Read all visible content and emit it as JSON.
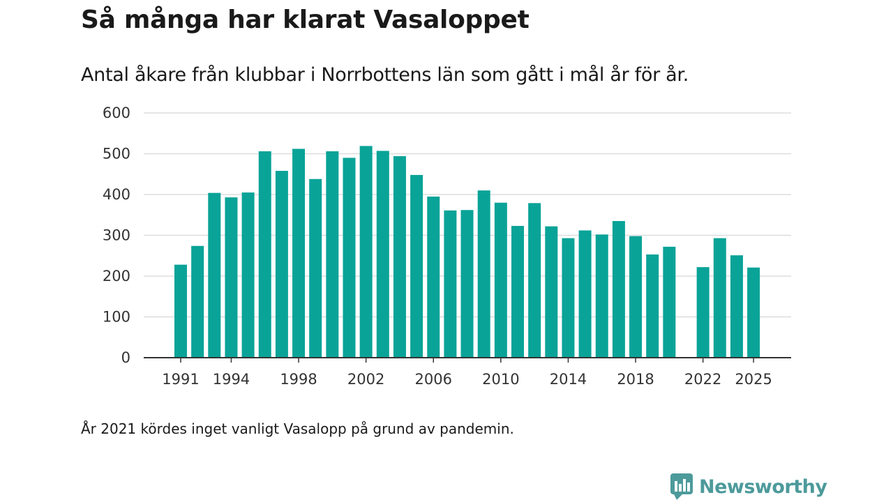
{
  "title": "Så många har klarat Vasaloppet",
  "subtitle": "Antal åkare från klubbar i Norrbottens län som gått i mål år för år.",
  "note": "År 2021 kördes inget vanligt Vasalopp på grund av pandemin.",
  "brand": {
    "name": "Newsworthy",
    "icon": "newsworthy-logo-icon"
  },
  "colors": {
    "bar": "#0aa398",
    "grid": "#dddddd",
    "axis": "#333333",
    "brand": "#4d9a9b"
  },
  "chart_data": {
    "type": "bar",
    "title": "Så många har klarat Vasaloppet",
    "xlabel": "",
    "ylabel": "",
    "ylim": [
      0,
      600
    ],
    "yticks": [
      0,
      100,
      200,
      300,
      400,
      500,
      600
    ],
    "xticks": [
      1991,
      1994,
      1998,
      2002,
      2006,
      2010,
      2014,
      2018,
      2022,
      2025
    ],
    "grid": true,
    "categories": [
      1991,
      1992,
      1993,
      1994,
      1995,
      1996,
      1997,
      1998,
      1999,
      2000,
      2001,
      2002,
      2003,
      2004,
      2005,
      2006,
      2007,
      2008,
      2009,
      2010,
      2011,
      2012,
      2013,
      2014,
      2015,
      2016,
      2017,
      2018,
      2019,
      2020,
      2021,
      2022,
      2023,
      2024,
      2025
    ],
    "values": [
      228,
      274,
      404,
      393,
      405,
      506,
      458,
      512,
      438,
      506,
      490,
      519,
      507,
      494,
      448,
      395,
      361,
      362,
      410,
      380,
      323,
      379,
      322,
      293,
      312,
      302,
      335,
      298,
      253,
      272,
      null,
      222,
      293,
      251,
      221
    ]
  }
}
